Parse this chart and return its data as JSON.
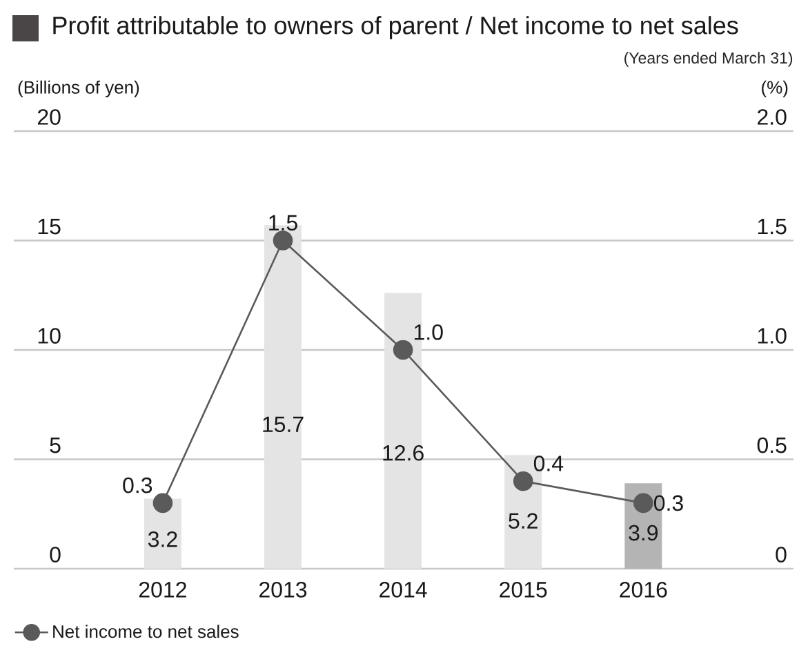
{
  "chart_data": {
    "type": "bar",
    "title": "Profit attributable to owners of parent / Net income to net sales",
    "subtitle": "(Years ended March 31)",
    "ylabel": "(Billions of yen)",
    "y2label": "(%)",
    "categories": [
      "2012",
      "2013",
      "2014",
      "2015",
      "2016"
    ],
    "series": [
      {
        "colors": [
          "#e3e4e3",
          "#e3e4e3",
          "#e3e4e3",
          "#e3e4e3",
          "#b4b4b4"
        ],
        "values": [
          3.2,
          15.7,
          12.6,
          5.2,
          3.9
        ],
        "value_labels": [
          "3.2",
          "15.7",
          "12.6",
          "5.2",
          "3.9"
        ]
      },
      {
        "type": "line",
        "name": "Net income to net sales",
        "color": "#5a5a5a",
        "axis": "y2",
        "marker": "circle",
        "values": [
          0.3,
          1.5,
          1.0,
          0.4,
          0.3
        ],
        "value_labels": [
          "0.3",
          "1.5",
          "1.0",
          "0.4",
          "0.3"
        ]
      }
    ],
    "ylim": [
      0,
      20
    ],
    "yticks": [
      0,
      5,
      10,
      15,
      20
    ],
    "y2lim": [
      0,
      2
    ],
    "y2ticks": [
      0,
      0.5,
      {
        "value": 1,
        "label": "1.0"
      },
      1.5,
      {
        "value": 2,
        "label": "2.0"
      }
    ],
    "grid": "y",
    "legend": "bottom left"
  }
}
